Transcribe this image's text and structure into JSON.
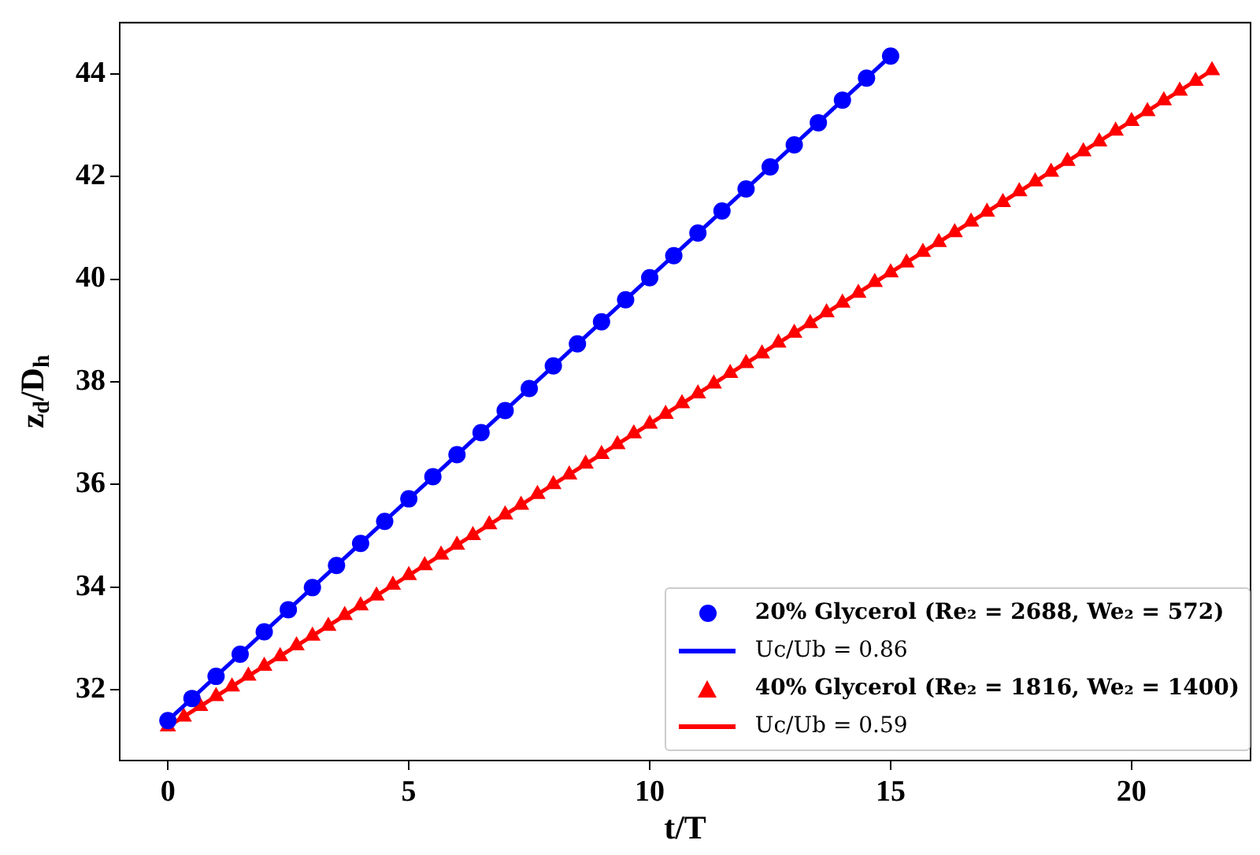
{
  "chart_data": {
    "type": "scatter",
    "xlabel": "t/T",
    "ylabel": "z$_{d}$/D$_{h}$",
    "xlim": [
      -1,
      22.47
    ],
    "xticks": [
      0,
      5,
      10,
      15,
      20
    ],
    "ylim": [
      30.62,
      45
    ],
    "yticks": [
      32,
      34,
      36,
      38,
      40,
      42,
      44
    ],
    "grid": false,
    "legend": "bottom right",
    "series": [
      {
        "name": "20% Glycerol (Re₂ = 2688, We₂ = 572)",
        "type": "scatter",
        "marker": "circle",
        "color": "#0000ff",
        "x": [
          0,
          0.5,
          1,
          1.5,
          2,
          2.5,
          3,
          3.5,
          4,
          4.5,
          5,
          5.5,
          6,
          6.5,
          7,
          7.5,
          8,
          8.5,
          9,
          9.5,
          10,
          10.5,
          11,
          11.5,
          12,
          12.5,
          13,
          13.5,
          14,
          14.5,
          15
        ],
        "values": [
          31.4,
          31.83,
          32.26,
          32.69,
          33.13,
          33.56,
          33.99,
          34.42,
          34.85,
          35.28,
          35.72,
          36.15,
          36.58,
          37.01,
          37.44,
          37.87,
          38.31,
          38.74,
          39.17,
          39.6,
          40.03,
          40.46,
          40.9,
          41.33,
          41.76,
          42.19,
          42.62,
          43.05,
          43.49,
          43.92,
          44.35
        ]
      },
      {
        "name": "Uc/Ub = 0.86",
        "type": "line",
        "marker": "none",
        "line_style": "solid",
        "color": "#0000ff",
        "x": [
          0,
          15
        ],
        "values": [
          31.4,
          44.35
        ]
      },
      {
        "name": "40% Glycerol (Re₂ = 1816, We₂ = 1400)",
        "type": "scatter",
        "marker": "triangle",
        "color": "#ff0000",
        "x": [
          0,
          0.33,
          0.67,
          1,
          1.33,
          1.67,
          2,
          2.33,
          2.67,
          3,
          3.33,
          3.67,
          4,
          4.33,
          4.67,
          5,
          5.33,
          5.67,
          6,
          6.33,
          6.67,
          7,
          7.33,
          7.67,
          8,
          8.33,
          8.67,
          9,
          9.33,
          9.67,
          10,
          10.33,
          10.67,
          11,
          11.33,
          11.67,
          12,
          12.33,
          12.67,
          13,
          13.33,
          13.67,
          14,
          14.33,
          14.67,
          15,
          15.33,
          15.67,
          16,
          16.33,
          16.67,
          17,
          17.33,
          17.67,
          18,
          18.33,
          18.67,
          19,
          19.33,
          19.67,
          20,
          20.33,
          20.67,
          21,
          21.33,
          21.67
        ],
        "values": [
          31.28,
          31.47,
          31.68,
          31.87,
          32.06,
          32.27,
          32.46,
          32.65,
          32.86,
          33.05,
          33.24,
          33.45,
          33.64,
          33.83,
          34.04,
          34.23,
          34.42,
          34.63,
          34.82,
          35.01,
          35.22,
          35.41,
          35.6,
          35.81,
          36,
          36.19,
          36.4,
          36.59,
          36.78,
          36.99,
          37.18,
          37.37,
          37.58,
          37.77,
          37.96,
          38.17,
          38.36,
          38.55,
          38.76,
          38.95,
          39.14,
          39.35,
          39.54,
          39.73,
          39.94,
          40.13,
          40.32,
          40.53,
          40.72,
          40.91,
          41.12,
          41.31,
          41.5,
          41.71,
          41.9,
          42.09,
          42.3,
          42.49,
          42.68,
          42.89,
          43.08,
          43.27,
          43.48,
          43.67,
          43.86,
          44.07
        ]
      },
      {
        "name": "Uc/Ub = 0.59",
        "type": "line",
        "marker": "none",
        "line_style": "solid",
        "color": "#ff0000",
        "x": [
          0,
          21.67
        ],
        "values": [
          31.28,
          44.07
        ]
      }
    ]
  }
}
